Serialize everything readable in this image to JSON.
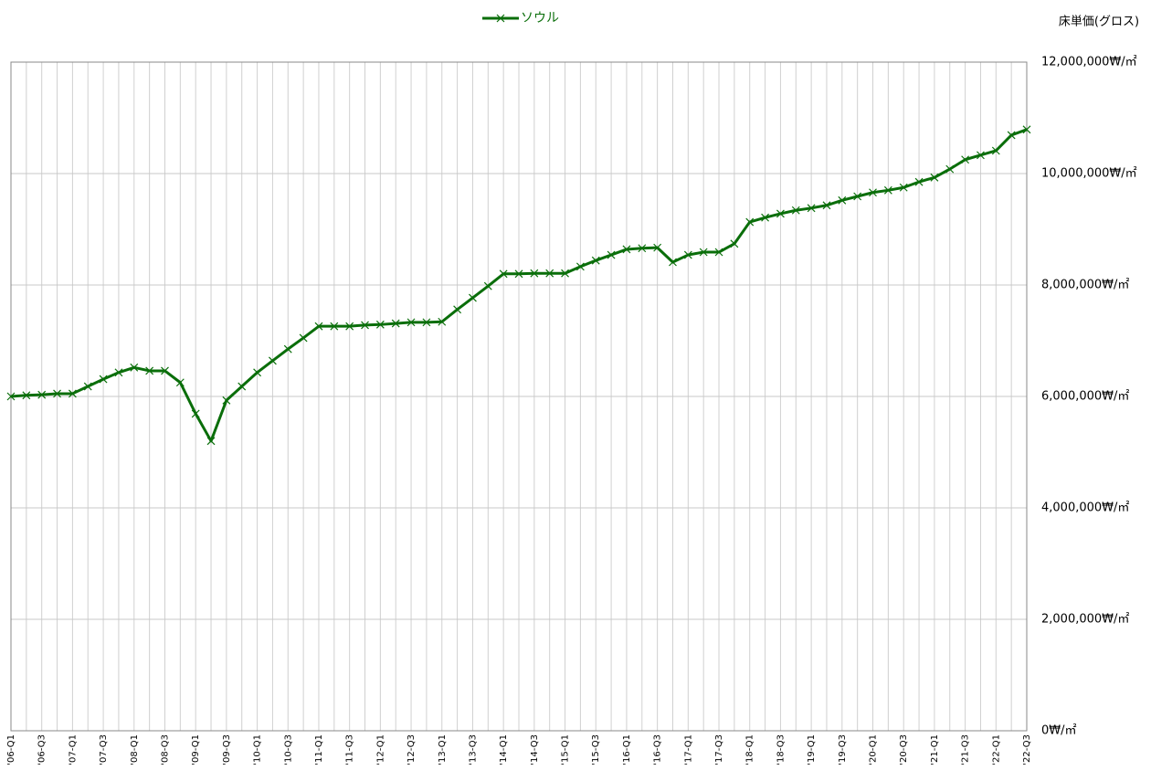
{
  "chart_data": {
    "type": "line",
    "legend": "top",
    "y_axis_title": "床単価(グロス)",
    "categories": [
      "'06-Q1",
      null,
      "'06-Q3",
      null,
      "'07-Q1",
      null,
      "'07-Q3",
      null,
      "'08-Q1",
      null,
      "'08-Q3",
      null,
      "'09-Q1",
      null,
      "'09-Q3",
      null,
      "'10-Q1",
      null,
      "'10-Q3",
      null,
      "'11-Q1",
      null,
      "'11-Q3",
      null,
      "'12-Q1",
      null,
      "'12-Q3",
      null,
      "'13-Q1",
      null,
      "'13-Q3",
      null,
      "'14-Q1",
      null,
      "'14-Q3",
      null,
      "'15-Q1",
      null,
      "'15-Q3",
      null,
      "'16-Q1",
      null,
      "'16-Q3",
      null,
      "'17-Q1",
      null,
      "'17-Q3",
      null,
      "'18-Q1",
      null,
      "'18-Q3",
      null,
      "'19-Q1",
      null,
      "'19-Q3",
      null,
      "'20-Q1",
      null,
      "'20-Q3",
      null,
      "'21-Q1",
      null,
      "'21-Q3",
      null,
      "'22-Q1",
      null,
      "'22-Q3"
    ],
    "series": [
      {
        "name": "ソウル",
        "color": "#0a6e0a",
        "values": [
          6000000,
          6020000,
          6030000,
          6050000,
          6050000,
          6180000,
          6310000,
          6430000,
          6520000,
          6460000,
          6460000,
          6250000,
          5690000,
          5200000,
          5930000,
          6180000,
          6430000,
          6640000,
          6850000,
          7050000,
          7260000,
          7260000,
          7260000,
          7280000,
          7290000,
          7310000,
          7330000,
          7330000,
          7340000,
          7560000,
          7770000,
          7980000,
          8200000,
          8200000,
          8210000,
          8210000,
          8210000,
          8330000,
          8440000,
          8540000,
          8640000,
          8660000,
          8670000,
          8410000,
          8540000,
          8590000,
          8590000,
          8740000,
          9130000,
          9210000,
          9280000,
          9340000,
          9380000,
          9430000,
          9520000,
          9590000,
          9660000,
          9700000,
          9750000,
          9850000,
          9930000,
          10080000,
          10250000,
          10330000,
          10410000,
          10690000,
          10790000
        ]
      }
    ],
    "ylim": [
      0,
      12000000
    ],
    "yticks": [
      {
        "value": 0,
        "label": "0₩/㎡"
      },
      {
        "value": 2000000,
        "label": "2,000,000₩/㎡"
      },
      {
        "value": 4000000,
        "label": "4,000,000₩/㎡"
      },
      {
        "value": 6000000,
        "label": "6,000,000₩/㎡"
      },
      {
        "value": 8000000,
        "label": "8,000,000₩/㎡"
      },
      {
        "value": 10000000,
        "label": "10,000,000₩/㎡"
      },
      {
        "value": 12000000,
        "label": "12,000,000₩/㎡"
      }
    ],
    "grid": true
  }
}
